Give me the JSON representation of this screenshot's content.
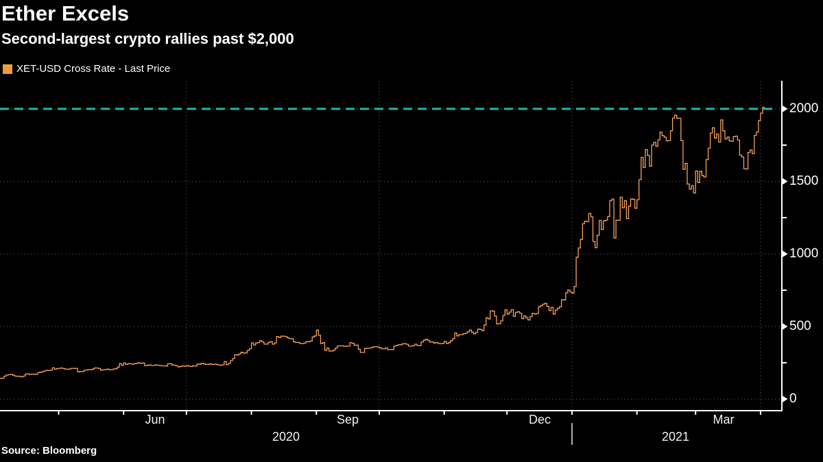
{
  "header": {
    "title": "Ether Excels",
    "subtitle": "Second-largest crypto rallies past $2,000"
  },
  "legend": {
    "label": "XET-USD Cross Rate - Last Price",
    "swatch_color": "#ef9b40"
  },
  "source": {
    "text": "Source: Bloomberg"
  },
  "axes": {
    "y_labels": [
      "2000",
      "1500",
      "1000",
      "500",
      "0"
    ],
    "x_month_labels": [
      "Jun",
      "Sep",
      "Dec",
      "Mar"
    ],
    "x_year_labels": [
      "2020",
      "2021"
    ]
  },
  "chart_data": {
    "type": "line",
    "style": "step-after",
    "title": "Ether Excels",
    "subtitle": "Second-largest crypto rallies past $2,000",
    "series_name": "XET-USD Cross Rate - Last Price",
    "legend_position": "top-left",
    "x_unit": "day",
    "x_start": "2020-04-03",
    "x_end": "2021-04-02",
    "ylim": [
      0,
      2190
    ],
    "y_ticks_major": [
      0,
      500,
      1000,
      1500,
      2000
    ],
    "y_ticks_minor": [
      250,
      750,
      1250,
      1750
    ],
    "x_month_tick_dates": [
      "2020-05-01",
      "2020-06-01",
      "2020-07-01",
      "2020-08-01",
      "2020-09-01",
      "2020-10-01",
      "2020-11-01",
      "2020-12-01",
      "2021-01-01",
      "2021-02-01",
      "2021-03-01",
      "2021-04-01"
    ],
    "grid": {
      "h_values": [
        0,
        500,
        1000,
        1500,
        2000
      ],
      "v_dates": [
        "2020-07-01",
        "2020-10-01",
        "2021-01-01",
        "2021-04-01"
      ]
    },
    "year_separator_date": "2021-01-01",
    "reference_line": {
      "value": 2000,
      "color": "#1fb7ae",
      "style": "dashed"
    },
    "colors": {
      "line": "#f7a35a",
      "reference": "#1fb7ae",
      "grid": "#4f4f4f",
      "axis": "#ffffff"
    },
    "values": [
      143,
      144,
      158,
      165,
      168,
      169,
      164,
      158,
      157,
      156,
      153,
      158,
      172,
      174,
      170,
      172,
      170,
      171,
      182,
      185,
      188,
      194,
      197,
      196,
      198,
      215,
      206,
      210,
      212,
      214,
      210,
      206,
      205,
      208,
      212,
      211,
      212,
      187,
      190,
      189,
      198,
      200,
      203,
      202,
      206,
      214,
      214,
      210,
      199,
      201,
      203,
      206,
      201,
      203,
      207,
      209,
      220,
      244,
      232,
      248,
      238,
      244,
      243,
      240,
      244,
      246,
      250,
      246,
      248,
      230,
      232,
      235,
      231,
      231,
      235,
      233,
      231,
      229,
      229,
      227,
      243,
      244,
      235,
      233,
      229,
      221,
      225,
      228,
      226,
      231,
      226,
      225,
      229,
      227,
      241,
      239,
      247,
      242,
      239,
      239,
      242,
      239,
      240,
      239,
      236,
      233,
      236,
      259,
      236,
      245,
      264,
      279,
      305,
      303,
      311,
      322,
      316,
      318,
      335,
      346,
      387,
      372,
      386,
      389,
      402,
      394,
      379,
      379,
      390,
      396,
      378,
      387,
      431,
      424,
      433,
      433,
      431,
      422,
      416,
      416,
      395,
      390,
      390,
      383,
      383,
      385,
      395,
      395,
      399,
      428,
      435,
      475,
      439,
      383,
      388,
      335,
      352,
      330,
      330,
      337,
      351,
      366,
      366,
      366,
      364,
      364,
      365,
      389,
      384,
      371,
      371,
      343,
      321,
      321,
      348,
      351,
      351,
      354,
      360,
      360,
      359,
      353,
      346,
      346,
      352,
      340,
      341,
      341,
      365,
      370,
      374,
      374,
      381,
      381,
      377,
      365,
      365,
      368,
      378,
      369,
      369,
      392,
      405,
      412,
      405,
      393,
      393,
      386,
      389,
      383,
      382,
      383,
      397,
      383,
      388,
      402,
      416,
      455,
      435,
      444,
      444,
      450,
      453,
      463,
      476,
      461,
      449,
      460,
      482,
      480,
      471,
      510,
      560,
      552,
      608,
      605,
      571,
      518,
      520,
      538,
      576,
      615,
      586,
      599,
      616,
      570,
      597,
      602,
      592,
      554,
      573,
      560,
      545,
      568,
      590,
      586,
      589,
      636,
      643,
      654,
      659,
      639,
      610,
      632,
      585,
      612,
      626,
      636,
      685,
      683,
      732,
      752,
      738,
      730,
      775,
      978,
      1041,
      1100,
      1208,
      1225,
      1222,
      1279,
      1255,
      1087,
      1043,
      1129,
      1231,
      1168,
      1228,
      1233,
      1258,
      1367,
      1378,
      1110,
      1233,
      1231,
      1391,
      1318,
      1367,
      1243,
      1329,
      1379,
      1376,
      1315,
      1373,
      1512,
      1665,
      1596,
      1719,
      1678,
      1605,
      1750,
      1769,
      1742,
      1786,
      1840,
      1815,
      1805,
      1779,
      1781,
      1849,
      1937,
      1956,
      1935,
      1935,
      1781,
      1583,
      1624,
      1482,
      1446,
      1470,
      1420,
      1571,
      1492,
      1570,
      1539,
      1530,
      1650,
      1729,
      1833,
      1870,
      1798,
      1826,
      1771,
      1924,
      1848,
      1792,
      1805,
      1779,
      1776,
      1808,
      1812,
      1785,
      1681,
      1668,
      1587,
      1586,
      1700,
      1716,
      1691,
      1817,
      1840,
      1919,
      1970,
      2010
    ]
  }
}
